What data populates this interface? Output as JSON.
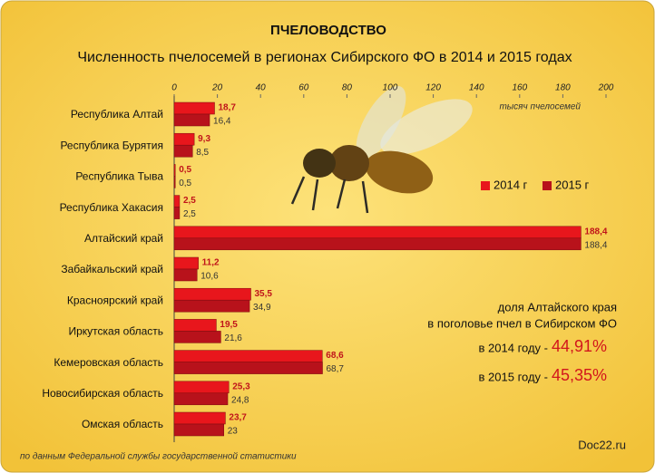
{
  "chart_data": {
    "type": "hbar",
    "title": "ПЧЕЛОВОДСТВО",
    "subtitle": "Численность пчелосемей в регионах Сибирского ФО в 2014 и 2015 годах",
    "x_label": "тысяч пчелосемей",
    "categories": [
      "Республика Алтай",
      "Республика Бурятия",
      "Республика Тыва",
      "Республика Хакасия",
      "Алтайский край",
      "Забайкальский край",
      "Красноярский край",
      "Иркутская область",
      "Кемеровская область",
      "Новосибирская область",
      "Омская область"
    ],
    "series": [
      {
        "name": "2014 г",
        "color": "#e8161c",
        "values": [
          18.7,
          9.3,
          0.5,
          2.5,
          188.4,
          11.2,
          35.5,
          19.5,
          68.6,
          25.3,
          23.7
        ],
        "value_labels": [
          "18,7",
          "9,3",
          "0,5",
          "2,5",
          "188,4",
          "11,2",
          "35,5",
          "19,5",
          "68,6",
          "25,3",
          "23,7"
        ]
      },
      {
        "name": "2015 г",
        "color": "#b8121b",
        "values": [
          16.4,
          8.5,
          0.5,
          2.5,
          188.4,
          10.6,
          34.9,
          21.6,
          68.7,
          24.8,
          23
        ],
        "value_labels": [
          "16,4",
          "8,5",
          "0,5",
          "2,5",
          "188,4",
          "10,6",
          "34,9",
          "21,6",
          "68,7",
          "24,8",
          "23"
        ]
      }
    ],
    "xlim": [
      0,
      200
    ],
    "xticks": [
      0,
      20,
      40,
      60,
      80,
      100,
      120,
      140,
      160,
      180,
      200
    ],
    "legend": "right",
    "annotations": [
      "доля Алтайского края",
      "в поголовье пчел в Сибирском ФО",
      "в 2014 году -",
      "44,91%",
      "в 2015 году -",
      "45,35%"
    ],
    "source": "по данным Федеральной службы государственной статистики",
    "watermark": "Doc22.ru"
  }
}
